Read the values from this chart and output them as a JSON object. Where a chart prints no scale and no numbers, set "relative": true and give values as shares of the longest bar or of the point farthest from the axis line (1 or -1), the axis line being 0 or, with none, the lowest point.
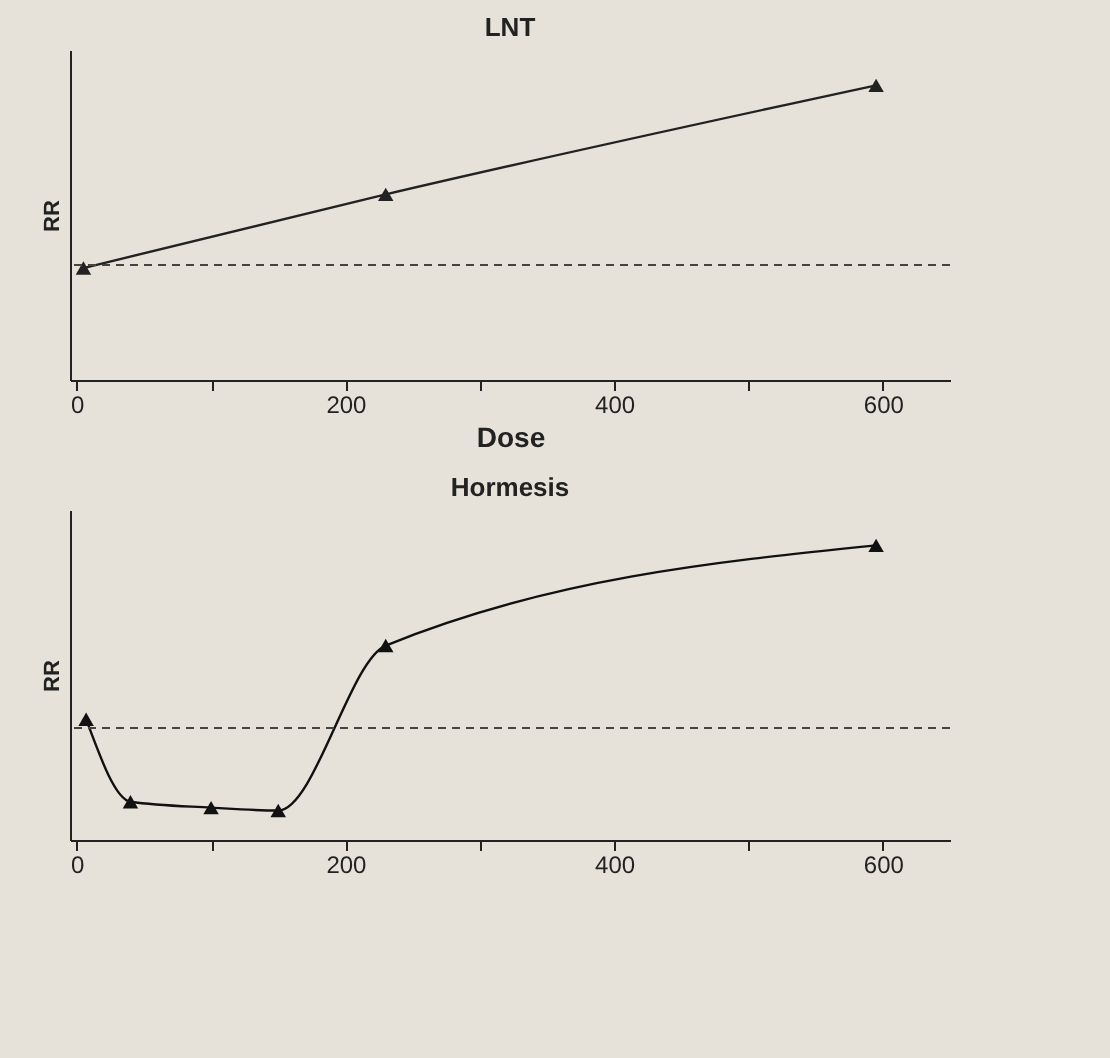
{
  "chart_data": [
    {
      "type": "line",
      "title": "LNT",
      "xlabel": "Dose",
      "ylabel": "RR",
      "relative": true,
      "x": [
        5,
        230,
        595
      ],
      "xlim": [
        -5,
        650
      ],
      "xticks": [
        0,
        {
          "value": 100,
          "label": null
        },
        200,
        {
          "value": 300,
          "label": null
        },
        400,
        {
          "value": 500,
          "label": null
        },
        600
      ],
      "series": [
        {
          "color": "#222222",
          "values": [
            0.38,
            0.63,
            1
          ]
        }
      ],
      "ref_lines": [
        {
          "axis": "y",
          "value": 0.39,
          "line_style": "dashed",
          "color": "#444444"
        }
      ],
      "marker": "triangle",
      "line_style": "solid",
      "grid": false,
      "tick_labels": "x"
    },
    {
      "type": "line",
      "title": "Hormesis",
      "ylabel": "RR",
      "relative": true,
      "x": [
        7,
        40,
        100,
        150,
        230,
        595
      ],
      "xlim": [
        -5,
        650
      ],
      "xticks": [
        0,
        {
          "value": 100,
          "label": null
        },
        200,
        {
          "value": 300,
          "label": null
        },
        400,
        {
          "value": 500,
          "label": null
        },
        600
      ],
      "series": [
        {
          "color": "#111111",
          "values": [
            0.41,
            0.13,
            0.11,
            0.1,
            0.66,
            1
          ]
        }
      ],
      "ref_lines": [
        {
          "axis": "y",
          "value": 0.38,
          "line_style": "dashed",
          "color": "#444444"
        }
      ],
      "marker": "triangle",
      "line_style": "solid",
      "grid": false,
      "tick_labels": "x"
    }
  ]
}
